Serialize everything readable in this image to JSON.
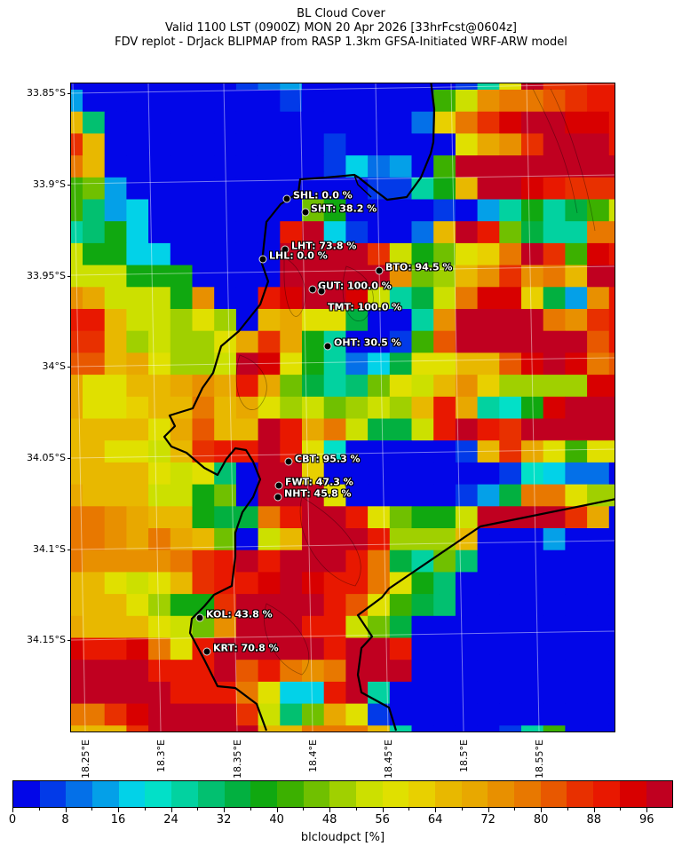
{
  "title": {
    "line1": "BL Cloud Cover",
    "line2": "Valid 1100 LST (0900Z) MON 20 Apr 2026 [33hrFcst@0604z]",
    "line3": "FDV replot - DrJack BLIPMAP from RASP 1.3km GFSA-Initiated WRF-ARW model"
  },
  "axes": {
    "lat_ticks": [
      "33.85°S",
      "33.9°S",
      "33.95°S",
      "34°S",
      "34.05°S",
      "34.1°S",
      "34.15°S"
    ],
    "lon_ticks": [
      "18.25°E",
      "18.3°E",
      "18.35°E",
      "18.4°E",
      "18.45°E",
      "18.5°E",
      "18.55°E"
    ]
  },
  "stations": [
    {
      "label": "SHL: 0.0 %"
    },
    {
      "label": "SHT: 38.2 %"
    },
    {
      "label": "LHT: 73.8 %"
    },
    {
      "label": "LHL: 0.0 %"
    },
    {
      "label": "BTO: 94.5 %"
    },
    {
      "label": "GUT: 100.0 %"
    },
    {
      "label": "TMT: 100.0 %"
    },
    {
      "label": "OHT: 30.5 %"
    },
    {
      "label": "CBT: 95.3 %"
    },
    {
      "label": "FWT: 47.3 %"
    },
    {
      "label": "NHT: 45.8 %"
    },
    {
      "label": "KOL: 43.8 %"
    },
    {
      "label": "KRT: 70.8 %"
    }
  ],
  "colorbar": {
    "label": "blcloudpct [%]",
    "min": 0,
    "max": 100,
    "step": 4,
    "tick_labels": [
      "0",
      "8",
      "16",
      "24",
      "32",
      "40",
      "48",
      "56",
      "64",
      "72",
      "80",
      "88",
      "96"
    ],
    "colors": [
      "#0206e8",
      "#023ae8",
      "#0470e8",
      "#04a0e8",
      "#02d2e8",
      "#02e0c8",
      "#02d2a0",
      "#02c070",
      "#02b040",
      "#10a810",
      "#3cb000",
      "#70c000",
      "#a0d000",
      "#cce000",
      "#e0e000",
      "#e8d000",
      "#e8b800",
      "#e8a800",
      "#e89000",
      "#e87800",
      "#e85800",
      "#e83000",
      "#e81800",
      "#d80000",
      "#c00020"
    ]
  },
  "chart_data": {
    "type": "heatmap",
    "title": "BL Cloud Cover",
    "variable": "blcloudpct [%]",
    "value_range": [
      0,
      100
    ],
    "bin_width": 4,
    "grid": [
      "aaaaaaaabcdaaaaaaabgoyvvww",
      "daaaaaaaaabaaaaaaknsttuvww",
      "qhaaaaaaaaaaaaaacptvxyyxxw",
      "vqaaaaaaaaaabaaaaaorsvyyyw",
      "tqaaaaaaaaaabecdakyyyyyyyy",
      "kldaaaaaaaaaaabbgjqyyxwvvv",
      "khdeaaaaaaaljaaaabadgjgikn",
      "ghjeaaaaaawyebaacqywliggtt",
      "njjeeaaaaayyyyvnjloptyvkxw",
      "nnnjjjaaaayyyyyslmqsvstqyy",
      "srnnnjsaawxyyxngintxxpidsw",
      "wwqnnmomaqrooiaagsyyyytsvw",
      "vvqmnmmorvrjgaabkuyyyyyyuw",
      "uuqrommnyxojgceiooqquxyxtu",
      "rooqqrsrwrlighlonqspmmmmxx",
      "roopqqtqromnlmnmqwrgfjxyyy",
      "qqqqoruqqywrtniinwywvyyyyy",
      "qqoonqvwwywofaaaaabqvrokoo",
      "qqqqonohayypaaaaaaaabfecca",
      "rqqqnnjlayyyoaaaaabdittomm",
      "ttsrqqjiitwyywoljjnyyyyvra",
      "ttsrtrqlanqyyywmmmqaaadaaa",
      "tsssstvwywyyywtiglhaaaaaaa",
      "qqonoqvwwxyxwwtojhaaaaaaaa",
      "qqqomjjvyyyywuokihaaaaaaaa",
      "rqqqonlsyyywwnliaaaaaaaaaa",
      "xwwxtowyyyyywyywaaaaaaaaaa",
      "yyyywwwyuwtstyyyaaaaaaaaaa",
      "yyyyywwwtoeewygaaaaaaaaaaa",
      "ttvxyyyyvnhlrobaaaaaaaaaaa",
      "qqqvyyyyyqqtttqgaaaabgkaaa"
    ]
  }
}
